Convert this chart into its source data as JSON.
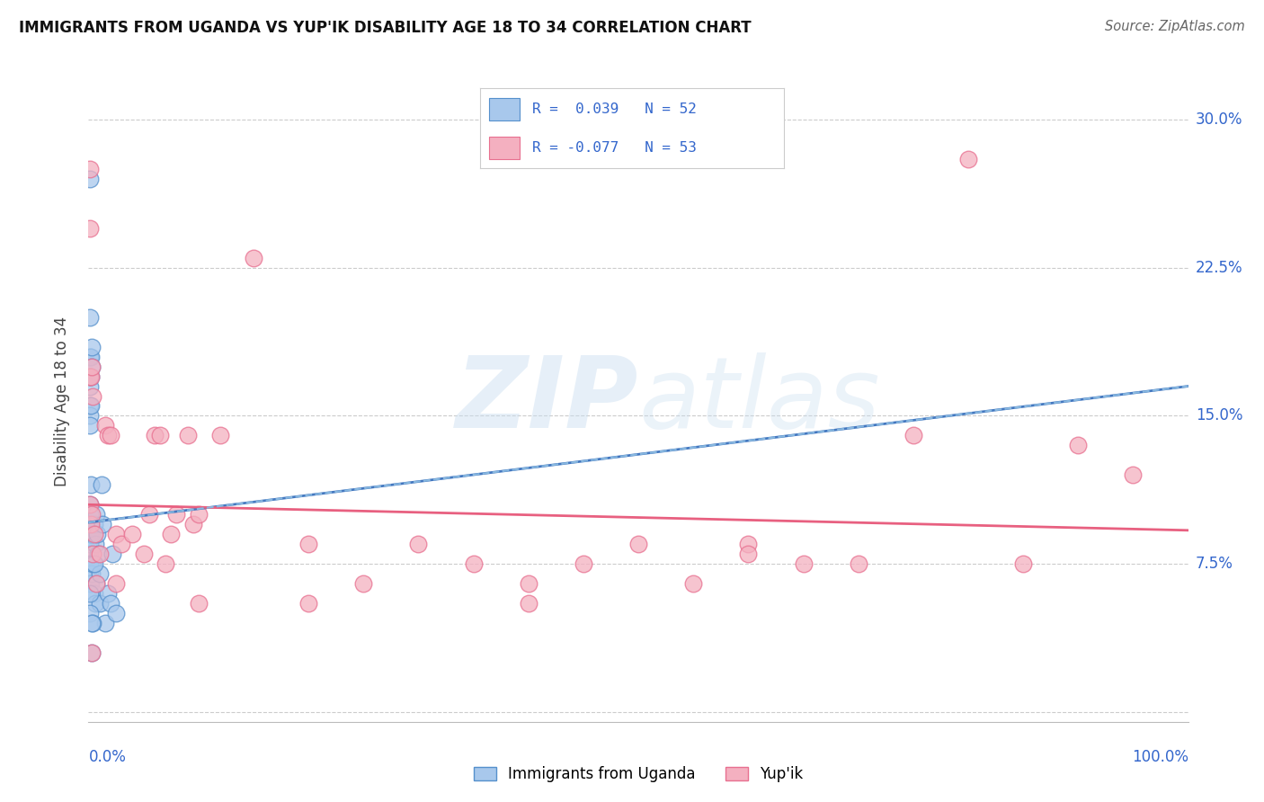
{
  "title": "IMMIGRANTS FROM UGANDA VS YUP'IK DISABILITY AGE 18 TO 34 CORRELATION CHART",
  "source": "Source: ZipAtlas.com",
  "ylabel": "Disability Age 18 to 34",
  "ytick_values": [
    0.0,
    0.075,
    0.15,
    0.225,
    0.3
  ],
  "ytick_labels": [
    "",
    "7.5%",
    "15.0%",
    "22.5%",
    "30.0%"
  ],
  "xlim": [
    0.0,
    1.0
  ],
  "ylim": [
    -0.005,
    0.32
  ],
  "legend_line1": "R =  0.039   N = 52",
  "legend_line2": "R = -0.077   N = 53",
  "legend_label1": "Immigrants from Uganda",
  "legend_label2": "Yup'ik",
  "blue_face": "#a8c8ec",
  "blue_edge": "#5590cc",
  "pink_face": "#f4b0c0",
  "pink_edge": "#e87090",
  "blue_trend_color": "#4478c0",
  "blue_dash_color": "#88b8e0",
  "pink_trend_color": "#e86080",
  "grid_color": "#cccccc",
  "title_color": "#111111",
  "source_color": "#666666",
  "axis_label_color": "#444444",
  "tick_color": "#3366cc",
  "blue_x": [
    0.001,
    0.001,
    0.001,
    0.001,
    0.001,
    0.001,
    0.001,
    0.001,
    0.001,
    0.001,
    0.001,
    0.001,
    0.001,
    0.001,
    0.001,
    0.001,
    0.001,
    0.002,
    0.002,
    0.002,
    0.002,
    0.002,
    0.003,
    0.003,
    0.003,
    0.003,
    0.004,
    0.004,
    0.005,
    0.005,
    0.006,
    0.006,
    0.007,
    0.007,
    0.008,
    0.009,
    0.01,
    0.01,
    0.012,
    0.013,
    0.015,
    0.018,
    0.02,
    0.022,
    0.025,
    0.001,
    0.001,
    0.002,
    0.003,
    0.004,
    0.005,
    0.003
  ],
  "blue_y": [
    0.27,
    0.095,
    0.17,
    0.2,
    0.18,
    0.165,
    0.155,
    0.15,
    0.145,
    0.105,
    0.1,
    0.09,
    0.085,
    0.08,
    0.075,
    0.07,
    0.065,
    0.18,
    0.17,
    0.115,
    0.09,
    0.065,
    0.185,
    0.175,
    0.09,
    0.07,
    0.09,
    0.075,
    0.095,
    0.06,
    0.085,
    0.055,
    0.1,
    0.065,
    0.09,
    0.08,
    0.07,
    0.055,
    0.115,
    0.095,
    0.045,
    0.06,
    0.055,
    0.08,
    0.05,
    0.06,
    0.05,
    0.155,
    0.03,
    0.045,
    0.075,
    0.045
  ],
  "pink_x": [
    0.001,
    0.001,
    0.001,
    0.001,
    0.002,
    0.002,
    0.003,
    0.003,
    0.004,
    0.004,
    0.005,
    0.007,
    0.01,
    0.015,
    0.018,
    0.02,
    0.025,
    0.025,
    0.03,
    0.05,
    0.055,
    0.06,
    0.065,
    0.075,
    0.08,
    0.09,
    0.095,
    0.1,
    0.12,
    0.15,
    0.2,
    0.25,
    0.3,
    0.35,
    0.4,
    0.45,
    0.5,
    0.55,
    0.6,
    0.65,
    0.7,
    0.75,
    0.8,
    0.85,
    0.9,
    0.95,
    0.003,
    0.04,
    0.07,
    0.1,
    0.2,
    0.4,
    0.6
  ],
  "pink_y": [
    0.275,
    0.245,
    0.17,
    0.105,
    0.17,
    0.095,
    0.175,
    0.1,
    0.16,
    0.08,
    0.09,
    0.065,
    0.08,
    0.145,
    0.14,
    0.14,
    0.09,
    0.065,
    0.085,
    0.08,
    0.1,
    0.14,
    0.14,
    0.09,
    0.1,
    0.14,
    0.095,
    0.1,
    0.14,
    0.23,
    0.085,
    0.065,
    0.085,
    0.075,
    0.065,
    0.075,
    0.085,
    0.065,
    0.085,
    0.075,
    0.075,
    0.14,
    0.28,
    0.075,
    0.135,
    0.12,
    0.03,
    0.09,
    0.075,
    0.055,
    0.055,
    0.055,
    0.08
  ],
  "blue_trend_x0": 0.0,
  "blue_trend_y0": 0.096,
  "blue_trend_x1": 1.0,
  "blue_trend_y1": 0.165,
  "pink_trend_x0": 0.0,
  "pink_trend_y0": 0.105,
  "pink_trend_x1": 1.0,
  "pink_trend_y1": 0.092
}
